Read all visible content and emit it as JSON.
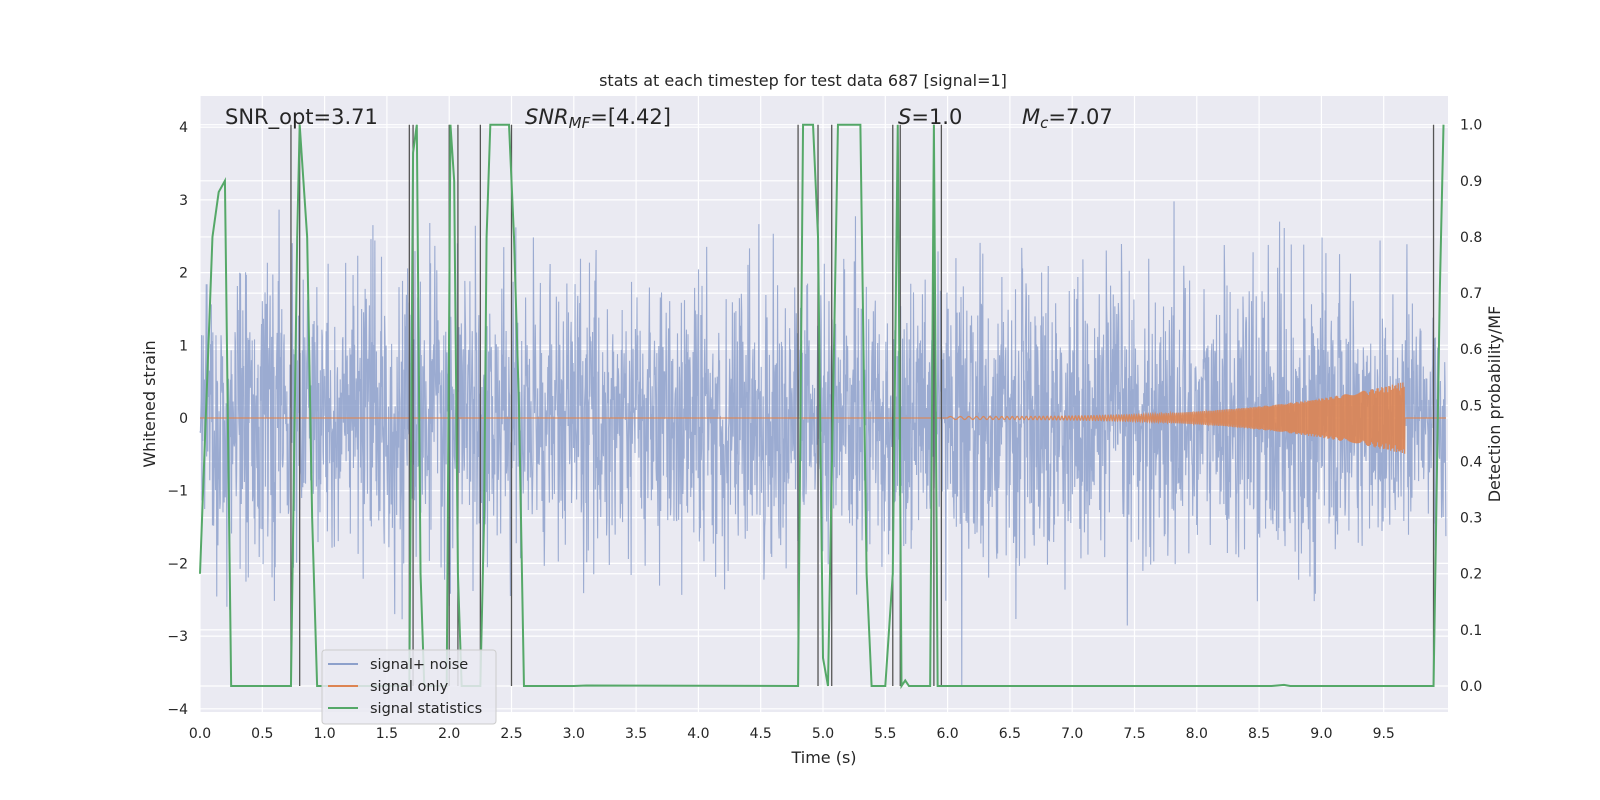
{
  "chart_data": {
    "type": "line",
    "title": "stats at each timestep for test data 687 [signal=1]",
    "xlabel": "Time (s)",
    "ylabel_left": "Whitened strain",
    "ylabel_right": "Detection probability/MF",
    "xlim": [
      0.0,
      10.0
    ],
    "ylim_left": [
      -4.2,
      4.4
    ],
    "ylim_right": [
      -0.05,
      1.03
    ],
    "x_ticks": [
      "0.0",
      "0.5",
      "1.0",
      "1.5",
      "2.0",
      "2.5",
      "3.0",
      "3.5",
      "4.0",
      "4.5",
      "5.0",
      "5.5",
      "6.0",
      "6.5",
      "7.0",
      "7.5",
      "8.0",
      "8.5",
      "9.0",
      "9.5"
    ],
    "y_ticks_left": [
      "4",
      "3",
      "2",
      "1",
      "0",
      "−1",
      "−2",
      "−3",
      "−4"
    ],
    "y_ticks_right": [
      "1.0",
      "0.9",
      "0.8",
      "0.7",
      "0.6",
      "0.5",
      "0.4",
      "0.3",
      "0.2",
      "0.1",
      "0.0"
    ],
    "grid": true,
    "legend_position": "lower-left",
    "annotations": {
      "snr_opt": "SNR_opt=3.71",
      "snr_mf_var": "SNR",
      "snr_mf_sub": "MF",
      "snr_mf_val": "=[4.42]",
      "s_var": "S",
      "s_val": "=1.0",
      "mc_var": "M",
      "mc_sub": "c",
      "mc_val": "=7.07"
    },
    "series": [
      {
        "name": "signal+ noise",
        "color": "#8da0cb",
        "axis": "left",
        "description_values": "whitened noise, amplitude range approx -3.7 to 4.0, centered at 0"
      },
      {
        "name": "signal only",
        "color": "#dd8452",
        "axis": "left",
        "chirp": {
          "start": 6.0,
          "end": 9.67,
          "start_amp": 0.02,
          "peak_amp": 0.5
        }
      },
      {
        "name": "signal statistics",
        "color": "#55a868",
        "axis": "right",
        "x": [
          0.0,
          0.05,
          0.1,
          0.15,
          0.2,
          0.25,
          0.3,
          0.73,
          0.78,
          0.8,
          0.83,
          0.86,
          0.9,
          0.94,
          1.0,
          1.68,
          1.71,
          1.74,
          1.77,
          1.8,
          1.9,
          1.98,
          2.01,
          2.04,
          2.07,
          2.1,
          2.2,
          2.25,
          2.28,
          2.3,
          2.33,
          2.38,
          2.43,
          2.48,
          2.52,
          2.56,
          2.6,
          2.65,
          3.0,
          3.1,
          4.8,
          4.84,
          4.88,
          4.92,
          4.96,
          5.0,
          5.04,
          5.08,
          5.12,
          5.16,
          5.2,
          5.3,
          5.35,
          5.39,
          5.43,
          5.5,
          5.56,
          5.6,
          5.63,
          5.66,
          5.69,
          5.74,
          5.86,
          5.89,
          5.92,
          5.95,
          6.0,
          8.6,
          8.7,
          8.75,
          9.85,
          9.9,
          9.95,
          9.98
        ],
        "y": [
          0.2,
          0.5,
          0.8,
          0.88,
          0.9,
          0.0,
          0.0,
          0.0,
          0.8,
          1.0,
          0.9,
          0.8,
          0.3,
          0.0,
          0.0,
          0.0,
          0.95,
          1.0,
          0.2,
          0.0,
          0.0,
          0.0,
          1.0,
          0.9,
          0.2,
          0.0,
          0.0,
          0.0,
          0.3,
          0.8,
          1.0,
          1.0,
          1.0,
          1.0,
          0.8,
          0.5,
          0.0,
          0.0,
          0.0,
          0.001,
          0.0,
          1.0,
          1.0,
          1.0,
          0.8,
          0.05,
          0.0,
          0.5,
          1.0,
          1.0,
          1.0,
          1.0,
          0.2,
          0.0,
          0.0,
          0.0,
          0.2,
          1.0,
          0.0,
          0.01,
          0.0,
          0.0,
          0.0,
          1.0,
          0.0,
          0.0,
          0.0,
          0.0,
          0.002,
          0.0,
          0.0,
          0.0,
          0.7,
          1.0
        ]
      }
    ],
    "vertical_markers": [
      0.73,
      0.8,
      1.68,
      1.71,
      2.0,
      2.07,
      2.25,
      2.5,
      4.8,
      4.96,
      5.07,
      5.56,
      5.62,
      5.89,
      5.95,
      9.9
    ]
  }
}
